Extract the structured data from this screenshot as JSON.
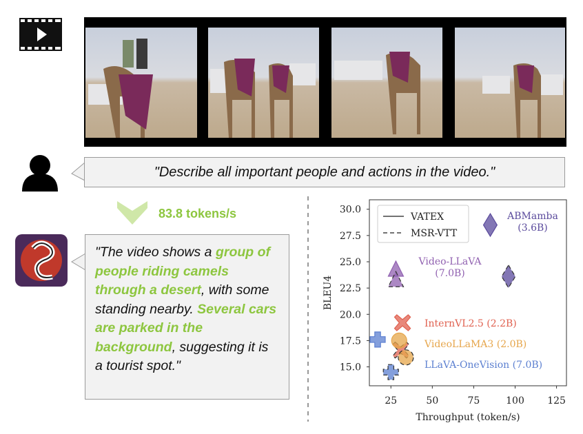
{
  "prompt": "\"Describe all important people and actions in the video.\"",
  "speed": "83.8 tokens/s",
  "response": {
    "segments": [
      {
        "text": "\"The video shows a ",
        "highlight": false
      },
      {
        "text": "group of people riding camels through a desert",
        "highlight": true
      },
      {
        "text": ", with some standing nearby. ",
        "highlight": false
      },
      {
        "text": "Several cars are parked in the background",
        "highlight": true
      },
      {
        "text": ", suggesting it is a tourist spot.\"",
        "highlight": false
      }
    ]
  },
  "chart_data": {
    "type": "scatter",
    "xlabel": "Throughput (token/s)",
    "ylabel": "BLEU4",
    "xlim": [
      12,
      131
    ],
    "ylim": [
      13.2,
      30.9
    ],
    "xticks": [
      25,
      50,
      75,
      100,
      125
    ],
    "yticks": [
      {
        "value": 15,
        "label": "15.0"
      },
      {
        "value": 17.5,
        "label": "17.5"
      },
      {
        "value": 20,
        "label": "20.0"
      },
      {
        "value": 22.5,
        "label": "22.5"
      },
      {
        "value": 25,
        "label": "25.0"
      },
      {
        "value": 27.5,
        "label": "27.5"
      },
      {
        "value": 30,
        "label": "30.0"
      }
    ],
    "legend": "upper left",
    "datasets": [
      {
        "name": "VATEX",
        "dash": "solid"
      },
      {
        "name": "MSR-VTT",
        "dash": "dashed"
      }
    ],
    "series": [
      {
        "name": "ABMamba (3.6B)",
        "color": "#5a4a9c",
        "marker": "diamond",
        "x": [
          85,
          96
        ],
        "values": [
          28.5,
          23.6
        ]
      },
      {
        "name": "Video-LLaVA (7.0B)",
        "color": "#9060b0",
        "marker": "triangle",
        "x": [
          28,
          28
        ],
        "values": [
          24.2,
          23.2
        ]
      },
      {
        "name": "InternVL2.5 (2.2B)",
        "color": "#e0604f",
        "marker": "x",
        "x": [
          32,
          31
        ],
        "values": [
          19.2,
          16.6
        ]
      },
      {
        "name": "VideoLLaMA3 (2.0B)",
        "color": "#e6a54a",
        "marker": "circle",
        "x": [
          30,
          34
        ],
        "values": [
          17.5,
          15.9
        ]
      },
      {
        "name": "LLaVA-OneVision (7.0B)",
        "color": "#5b7fd0",
        "marker": "plus",
        "x": [
          17,
          25
        ],
        "values": [
          17.6,
          14.5
        ]
      }
    ]
  }
}
